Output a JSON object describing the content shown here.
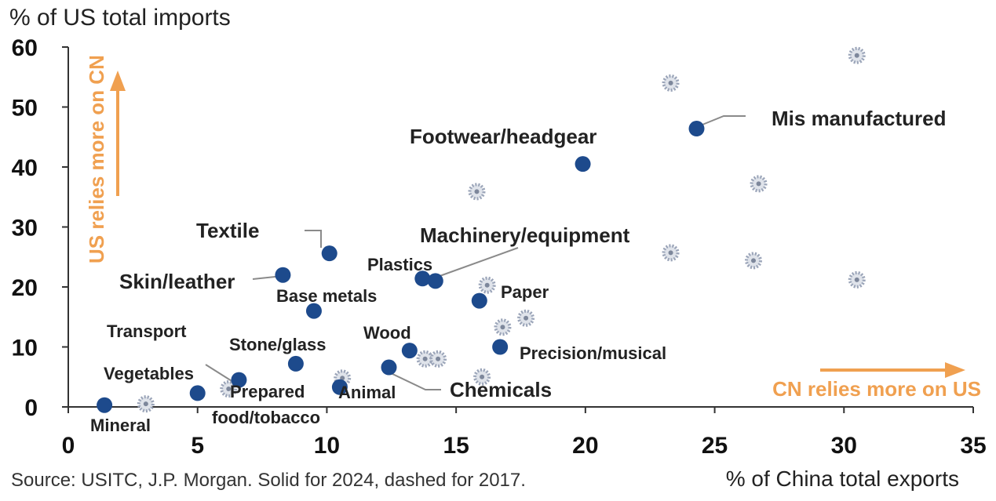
{
  "chart_data": {
    "type": "scatter",
    "ylabel": "% of US total imports",
    "xlabel": "% of China total exports",
    "xlim": [
      0,
      35
    ],
    "ylim": [
      0,
      60
    ],
    "x_ticks": [
      "0",
      "5",
      "10",
      "15",
      "20",
      "25",
      "30",
      "35"
    ],
    "y_ticks": [
      "0",
      "10",
      "20",
      "30",
      "40",
      "50",
      "60"
    ],
    "source": "Source: USITC, J.P. Morgan. Solid for 2024, dashed for 2017.",
    "annotation_up": "US relies more on CN",
    "annotation_right": "CN relies more on US",
    "colors": {
      "solid": "#1d4a8c",
      "dashed": "#9aa4b8",
      "accent": "#f0a050"
    },
    "series": [
      {
        "name": "2024",
        "style": "solid",
        "points": [
          {
            "label": "Mineral",
            "x": 1.4,
            "y": 0.3
          },
          {
            "label": "Vegetables",
            "x": 5.0,
            "y": 2.3
          },
          {
            "label": "Transport",
            "x": 6.6,
            "y": 4.5
          },
          {
            "label": "Stone/glass",
            "x": 8.8,
            "y": 7.2
          },
          {
            "label": "Animal",
            "x": 10.5,
            "y": 3.3
          },
          {
            "label": "Chemicals",
            "x": 12.4,
            "y": 6.6
          },
          {
            "label": "Wood",
            "x": 13.2,
            "y": 9.4
          },
          {
            "label": "Base metals",
            "x": 9.5,
            "y": 16.0
          },
          {
            "label": "Skin/leather",
            "x": 8.3,
            "y": 22.0
          },
          {
            "label": "Textile",
            "x": 10.1,
            "y": 25.6
          },
          {
            "label": "Plastics",
            "x": 13.7,
            "y": 21.4
          },
          {
            "label": "Machinery/equipment",
            "x": 14.2,
            "y": 21.0
          },
          {
            "label": "Paper",
            "x": 15.9,
            "y": 17.7
          },
          {
            "label": "Precision/musical",
            "x": 16.7,
            "y": 10.0
          },
          {
            "label": "Footwear/headgear",
            "x": 19.9,
            "y": 40.5
          },
          {
            "label": "Mis manufactured",
            "x": 24.3,
            "y": 46.4
          }
        ]
      },
      {
        "name": "2017",
        "style": "dashed",
        "points": [
          {
            "x": 3.0,
            "y": 0.5
          },
          {
            "x": 6.2,
            "y": 3.0
          },
          {
            "x": 10.6,
            "y": 4.8
          },
          {
            "x": 13.8,
            "y": 8.0
          },
          {
            "x": 14.3,
            "y": 8.0
          },
          {
            "x": 16.0,
            "y": 5.0
          },
          {
            "x": 16.2,
            "y": 20.3
          },
          {
            "x": 16.8,
            "y": 13.3
          },
          {
            "x": 17.7,
            "y": 14.8
          },
          {
            "x": 15.8,
            "y": 35.9
          },
          {
            "x": 23.3,
            "y": 25.7
          },
          {
            "x": 26.5,
            "y": 24.4
          },
          {
            "x": 26.7,
            "y": 37.2
          },
          {
            "x": 23.3,
            "y": 54.0
          },
          {
            "x": 30.5,
            "y": 21.2
          },
          {
            "x": 30.5,
            "y": 58.6
          }
        ]
      }
    ],
    "labels": [
      {
        "name": "mis-manufactured",
        "text": "Mis manufactured",
        "big": false
      },
      {
        "name": "footwear-headgear",
        "text": "Footwear/headgear",
        "big": false
      },
      {
        "name": "textile",
        "text": "Textile",
        "big": false
      },
      {
        "name": "machinery-equipment",
        "text": "Machinery/equipment",
        "big": false
      },
      {
        "name": "plastics",
        "text": "Plastics",
        "big": false
      },
      {
        "name": "skin-leather",
        "text": "Skin/leather",
        "big": false
      },
      {
        "name": "base-metals",
        "text": "Base metals",
        "big": false
      },
      {
        "name": "paper",
        "text": "Paper",
        "big": false
      },
      {
        "name": "transport",
        "text": "Transport",
        "big": false
      },
      {
        "name": "stone-glass",
        "text": "Stone/glass",
        "big": false
      },
      {
        "name": "wood",
        "text": "Wood",
        "big": false
      },
      {
        "name": "precision-musical",
        "text": "Precision/musical",
        "big": false
      },
      {
        "name": "vegetables",
        "text": "Vegetables",
        "big": false
      },
      {
        "name": "prepared",
        "text": "Prepared",
        "big": false
      },
      {
        "name": "food-tobacco",
        "text": "food/tobacco",
        "big": false
      },
      {
        "name": "animal",
        "text": "Animal",
        "big": false
      },
      {
        "name": "chemicals",
        "text": "Chemicals",
        "big": true
      },
      {
        "name": "mineral",
        "text": "Mineral",
        "big": false
      }
    ]
  }
}
